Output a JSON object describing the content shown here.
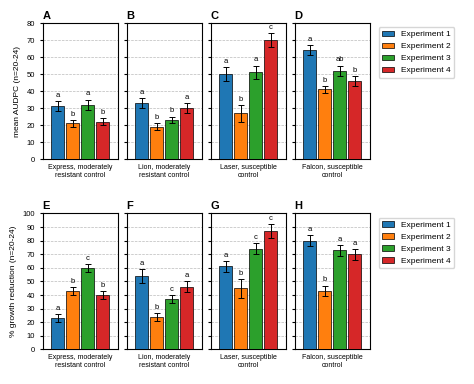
{
  "chart_data": [
    {
      "type": "bar",
      "title": "A",
      "ylabel": "mean AUDPC (n=20-24)",
      "categories": [
        "Express, moderately\nresistant control"
      ],
      "ylim": [
        0,
        80
      ],
      "yticks": [
        0,
        10,
        20,
        30,
        40,
        50,
        60,
        70,
        80
      ],
      "grid": true,
      "legend": "upper left",
      "series": [
        {
          "name": "Experiment 1",
          "values": [
            31
          ],
          "errors": [
            3
          ],
          "letters": [
            "a"
          ]
        },
        {
          "name": "Experiment 2",
          "values": [
            21
          ],
          "errors": [
            2
          ],
          "letters": [
            "b"
          ]
        },
        {
          "name": "Experiment 3",
          "values": [
            32
          ],
          "errors": [
            3
          ],
          "letters": [
            "a"
          ]
        },
        {
          "name": "Experiment 4",
          "values": [
            22
          ],
          "errors": [
            2
          ],
          "letters": [
            "b"
          ]
        }
      ]
    },
    {
      "type": "bar",
      "title": "B",
      "categories": [
        "Lion, moderately\nresistant control"
      ],
      "ylim": [
        0,
        80
      ],
      "yticks": [
        0,
        10,
        20,
        30,
        40,
        50,
        60,
        70,
        80
      ],
      "grid": true,
      "tick_labels": "x",
      "series": [
        {
          "name": "Experiment 1",
          "values": [
            33
          ],
          "errors": [
            3
          ],
          "letters": [
            "a"
          ]
        },
        {
          "name": "Experiment 2",
          "values": [
            19
          ],
          "errors": [
            2
          ],
          "letters": [
            "b"
          ]
        },
        {
          "name": "Experiment 3",
          "values": [
            23
          ],
          "errors": [
            2
          ],
          "letters": [
            "b"
          ]
        },
        {
          "name": "Experiment 4",
          "values": [
            30
          ],
          "errors": [
            3
          ],
          "letters": [
            "a"
          ]
        }
      ]
    },
    {
      "type": "bar",
      "title": "C",
      "categories": [
        "Laser, susceptible\ncontrol"
      ],
      "ylim": [
        0,
        80
      ],
      "yticks": [
        0,
        10,
        20,
        30,
        40,
        50,
        60,
        70,
        80
      ],
      "grid": true,
      "tick_labels": "x",
      "series": [
        {
          "name": "Experiment 1",
          "values": [
            50
          ],
          "errors": [
            4
          ],
          "letters": [
            "a"
          ]
        },
        {
          "name": "Experiment 2",
          "values": [
            27
          ],
          "errors": [
            5
          ],
          "letters": [
            "b"
          ]
        },
        {
          "name": "Experiment 3",
          "values": [
            51
          ],
          "errors": [
            4
          ],
          "letters": [
            "a"
          ]
        },
        {
          "name": "Experiment 4",
          "values": [
            70
          ],
          "errors": [
            4
          ],
          "letters": [
            "c"
          ]
        }
      ]
    },
    {
      "type": "bar",
      "title": "D",
      "categories": [
        "Falcon, susceptible\ncontrol"
      ],
      "ylim": [
        0,
        80
      ],
      "yticks": [
        0,
        10,
        20,
        30,
        40,
        50,
        60,
        70,
        80
      ],
      "grid": true,
      "tick_labels": "x",
      "series": [
        {
          "name": "Experiment 1",
          "values": [
            64
          ],
          "errors": [
            3
          ],
          "letters": [
            "a"
          ]
        },
        {
          "name": "Experiment 2",
          "values": [
            41
          ],
          "errors": [
            2
          ],
          "letters": [
            "b"
          ]
        },
        {
          "name": "Experiment 3",
          "values": [
            52
          ],
          "errors": [
            3
          ],
          "letters": [
            "ab"
          ]
        },
        {
          "name": "Experiment 4",
          "values": [
            46
          ],
          "errors": [
            3
          ],
          "letters": [
            "b"
          ]
        }
      ]
    },
    {
      "type": "bar",
      "title": "E",
      "ylabel": "% growth reduction (n=20-24)",
      "categories": [
        "Express, moderately\nresistant control"
      ],
      "ylim": [
        0,
        100
      ],
      "yticks": [
        0,
        10,
        20,
        30,
        40,
        50,
        60,
        70,
        80,
        90,
        100
      ],
      "grid": true,
      "legend": "upper left",
      "series": [
        {
          "name": "Experiment 1",
          "values": [
            23
          ],
          "errors": [
            3
          ],
          "letters": [
            "a"
          ]
        },
        {
          "name": "Experiment 2",
          "values": [
            43
          ],
          "errors": [
            3
          ],
          "letters": [
            "b"
          ]
        },
        {
          "name": "Experiment 3",
          "values": [
            60
          ],
          "errors": [
            3
          ],
          "letters": [
            "c"
          ]
        },
        {
          "name": "Experiment 4",
          "values": [
            40
          ],
          "errors": [
            3
          ],
          "letters": [
            "b"
          ]
        }
      ]
    },
    {
      "type": "bar",
      "title": "F",
      "categories": [
        "Lion, moderately\nresistant control"
      ],
      "ylim": [
        0,
        100
      ],
      "yticks": [
        0,
        10,
        20,
        30,
        40,
        50,
        60,
        70,
        80,
        90,
        100
      ],
      "grid": true,
      "tick_labels": "x",
      "series": [
        {
          "name": "Experiment 1",
          "values": [
            54
          ],
          "errors": [
            5
          ],
          "letters": [
            "a"
          ]
        },
        {
          "name": "Experiment 2",
          "values": [
            24
          ],
          "errors": [
            3
          ],
          "letters": [
            "b"
          ]
        },
        {
          "name": "Experiment 3",
          "values": [
            37
          ],
          "errors": [
            3
          ],
          "letters": [
            "c"
          ]
        },
        {
          "name": "Experiment 4",
          "values": [
            46
          ],
          "errors": [
            4
          ],
          "letters": [
            "a"
          ]
        }
      ]
    },
    {
      "type": "bar",
      "title": "G",
      "categories": [
        "Laser, susceptible\ncontrol"
      ],
      "ylim": [
        0,
        100
      ],
      "yticks": [
        0,
        10,
        20,
        30,
        40,
        50,
        60,
        70,
        80,
        90,
        100
      ],
      "grid": true,
      "tick_labels": "x",
      "series": [
        {
          "name": "Experiment 1",
          "values": [
            61
          ],
          "errors": [
            4
          ],
          "letters": [
            "a"
          ]
        },
        {
          "name": "Experiment 2",
          "values": [
            45
          ],
          "errors": [
            7
          ],
          "letters": [
            "b"
          ]
        },
        {
          "name": "Experiment 3",
          "values": [
            74
          ],
          "errors": [
            4
          ],
          "letters": [
            "c"
          ]
        },
        {
          "name": "Experiment 4",
          "values": [
            87
          ],
          "errors": [
            5
          ],
          "letters": [
            "c"
          ]
        }
      ]
    },
    {
      "type": "bar",
      "title": "H",
      "categories": [
        "Falcon, susceptible\ncontrol"
      ],
      "ylim": [
        0,
        100
      ],
      "yticks": [
        0,
        10,
        20,
        30,
        40,
        50,
        60,
        70,
        80,
        90,
        100
      ],
      "grid": true,
      "tick_labels": "x",
      "series": [
        {
          "name": "Experiment 1",
          "values": [
            80
          ],
          "errors": [
            4
          ],
          "letters": [
            "a"
          ]
        },
        {
          "name": "Experiment 2",
          "values": [
            43
          ],
          "errors": [
            4
          ],
          "letters": [
            "b"
          ]
        },
        {
          "name": "Experiment 3",
          "values": [
            73
          ],
          "errors": [
            4
          ],
          "letters": [
            "a"
          ]
        },
        {
          "name": "Experiment 4",
          "values": [
            70
          ],
          "errors": [
            4
          ],
          "letters": [
            "a"
          ]
        }
      ]
    }
  ]
}
